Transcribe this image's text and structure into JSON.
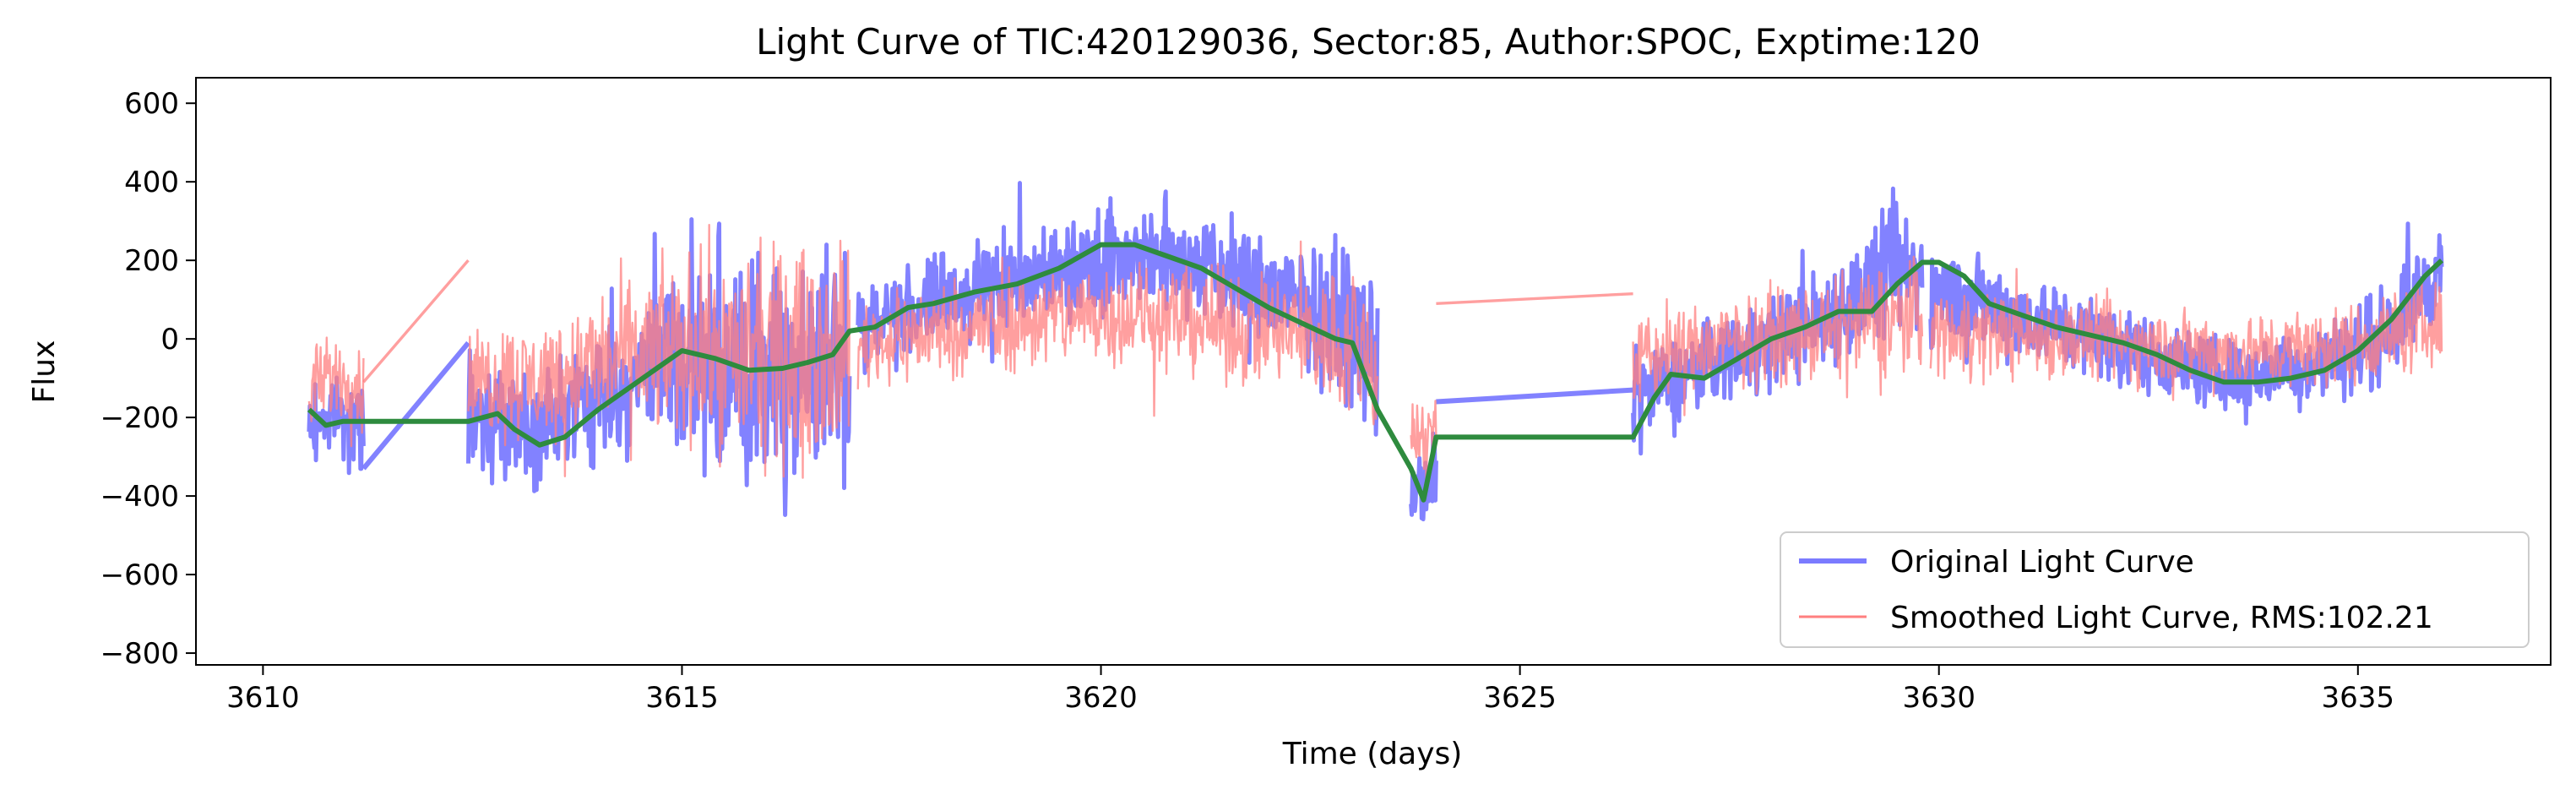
{
  "chart_data": {
    "type": "line",
    "title": "Light Curve of TIC:420129036, Sector:85, Author:SPOC, Exptime:120",
    "xlabel": "Time (days)",
    "ylabel": "Flux",
    "xlim": [
      3609.2,
      3637.3
    ],
    "ylim": [
      -830,
      665
    ],
    "xticks": [
      3610,
      3615,
      3620,
      3625,
      3630,
      3635
    ],
    "yticks": [
      -800,
      -600,
      -400,
      -200,
      0,
      200,
      400,
      600
    ],
    "grid": false,
    "legend_position": "lower-right",
    "colors": {
      "original": "#7b7bff",
      "smoothed": "#ff7f7f",
      "trend": "#2e8b3e"
    },
    "series": [
      {
        "name": "Original Light Curve",
        "style": "noisy-band",
        "segments": [
          {
            "x": [
              3610.55,
              3610.7,
              3610.85,
              3611.0,
              3611.2
            ],
            "center": [
              -230,
              -200,
              -180,
              -210,
              -240
            ],
            "amp": [
              160,
              150,
              140,
              150,
              170
            ]
          },
          {
            "x": [
              3612.45,
              3612.8,
              3613.2,
              3613.6,
              3614.0,
              3614.4,
              3614.8,
              3615.2,
              3615.6,
              3616.0,
              3616.4,
              3616.8,
              3617.0
            ],
            "center": [
              -190,
              -200,
              -220,
              -200,
              -150,
              -110,
              -60,
              -60,
              -80,
              -90,
              -80,
              -60,
              -40
            ],
            "amp": [
              200,
              210,
              220,
              230,
              250,
              280,
              320,
              360,
              400,
              430,
              440,
              430,
              400
            ]
          },
          {
            "x": [
              3617.1,
              3617.5,
              3618.0,
              3618.5,
              3619.0,
              3619.5,
              3620.0,
              3620.5,
              3621.0,
              3621.5,
              3622.0,
              3622.5,
              3623.0,
              3623.3
            ],
            "center": [
              30,
              60,
              90,
              120,
              150,
              180,
              210,
              220,
              200,
              160,
              120,
              80,
              20,
              -60
            ],
            "amp": [
              170,
              170,
              180,
              180,
              190,
              190,
              200,
              200,
              200,
              200,
              210,
              230,
              280,
              300
            ]
          },
          {
            "x": [
              3623.7,
              3623.85,
              3624.0
            ],
            "center": [
              -350,
              -420,
              -330
            ],
            "amp": [
              180,
              170,
              150
            ]
          },
          {
            "x": [
              3626.35,
              3626.7,
              3627.2,
              3627.8,
              3628.4,
              3629.0,
              3629.5,
              3629.8
            ],
            "center": [
              -150,
              -120,
              -60,
              -10,
              30,
              100,
              180,
              170
            ],
            "amp": [
              170,
              160,
              160,
              170,
              190,
              220,
              240,
              230
            ]
          },
          {
            "x": [
              3629.9,
              3630.4,
              3631.0,
              3631.6,
              3632.2,
              3632.8,
              3633.4,
              3634.0,
              3634.6,
              3635.2,
              3635.7,
              3636.0
            ],
            "center": [
              130,
              100,
              60,
              20,
              -20,
              -60,
              -90,
              -80,
              -60,
              -10,
              110,
              170
            ],
            "amp": [
              190,
              180,
              170,
              160,
              150,
              140,
              140,
              140,
              150,
              170,
              180,
              170
            ]
          }
        ],
        "connectors": [
          [
            3611.2,
            -330,
            3612.45,
            -10
          ],
          [
            3624.0,
            -160,
            3626.35,
            -130
          ]
        ]
      },
      {
        "name": "Smoothed Light Curve, RMS:102.21",
        "style": "noisy-band",
        "segments": [
          {
            "x": [
              3610.55,
              3610.7,
              3610.85,
              3611.0,
              3611.2
            ],
            "center": [
              -140,
              -110,
              -90,
              -110,
              -130
            ],
            "amp": [
              170,
              160,
              150,
              150,
              160
            ]
          },
          {
            "x": [
              3612.45,
              3612.8,
              3613.2,
              3613.6,
              3614.0,
              3614.4,
              3614.8,
              3615.2,
              3615.6,
              3616.0,
              3616.4,
              3616.8,
              3617.0
            ],
            "center": [
              -110,
              -100,
              -110,
              -90,
              -60,
              -40,
              -30,
              -20,
              -40,
              -50,
              -40,
              -20,
              -10
            ],
            "amp": [
              210,
              220,
              230,
              240,
              260,
              290,
              320,
              360,
              380,
              400,
              410,
              400,
              380
            ]
          },
          {
            "x": [
              3617.1,
              3617.5,
              3618.0,
              3618.5,
              3619.0,
              3619.5,
              3620.0,
              3620.5,
              3621.0,
              3621.5,
              3622.0,
              3622.5,
              3623.0,
              3623.3
            ],
            "center": [
              -20,
              0,
              20,
              30,
              40,
              60,
              70,
              60,
              50,
              30,
              20,
              10,
              -20,
              -60
            ],
            "amp": [
              170,
              170,
              180,
              180,
              190,
              190,
              200,
              200,
              200,
              210,
              220,
              240,
              290,
              320
            ]
          },
          {
            "x": [
              3623.7,
              3623.85,
              3624.0
            ],
            "center": [
              -230,
              -260,
              -210
            ],
            "amp": [
              180,
              170,
              160
            ]
          },
          {
            "x": [
              3626.35,
              3626.7,
              3627.2,
              3627.8,
              3628.4,
              3629.0,
              3629.5,
              3629.8
            ],
            "center": [
              -60,
              -40,
              -20,
              0,
              10,
              30,
              60,
              60
            ],
            "amp": [
              180,
              170,
              170,
              170,
              180,
              200,
              220,
              220
            ]
          },
          {
            "x": [
              3629.9,
              3630.4,
              3631.0,
              3631.6,
              3632.2,
              3632.8,
              3633.4,
              3634.0,
              3634.6,
              3635.2,
              3635.7,
              3636.0
            ],
            "center": [
              20,
              20,
              10,
              0,
              -10,
              -20,
              -30,
              -30,
              -20,
              0,
              30,
              40
            ],
            "amp": [
              170,
              170,
              160,
              160,
              150,
              150,
              150,
              150,
              150,
              160,
              170,
              170
            ]
          }
        ],
        "connectors": [
          [
            3611.2,
            -110,
            3612.45,
            200
          ],
          [
            3624.0,
            90,
            3626.35,
            115
          ]
        ]
      },
      {
        "name": "",
        "style": "trend-line",
        "x": [
          3610.55,
          3610.75,
          3610.95,
          3611.2,
          3612.45,
          3612.8,
          3613.0,
          3613.3,
          3613.6,
          3614.0,
          3614.4,
          3614.8,
          3615.0,
          3615.4,
          3615.8,
          3616.2,
          3616.5,
          3616.8,
          3617.0,
          3617.3,
          3617.7,
          3618.0,
          3618.5,
          3619.0,
          3619.5,
          3620.0,
          3620.4,
          3620.8,
          3621.2,
          3621.6,
          3622.0,
          3622.4,
          3622.8,
          3623.0,
          3623.3,
          3623.7,
          3623.85,
          3624.0,
          3626.35,
          3626.6,
          3626.8,
          3627.2,
          3627.6,
          3628.0,
          3628.4,
          3628.8,
          3629.2,
          3629.5,
          3629.8,
          3630.0,
          3630.3,
          3630.6,
          3631.0,
          3631.4,
          3631.8,
          3632.2,
          3632.6,
          3633.0,
          3633.4,
          3633.8,
          3634.2,
          3634.6,
          3635.0,
          3635.4,
          3635.8,
          3636.0
        ],
        "y": [
          -180,
          -220,
          -210,
          -210,
          -210,
          -190,
          -230,
          -270,
          -250,
          -180,
          -120,
          -60,
          -30,
          -50,
          -80,
          -75,
          -60,
          -40,
          20,
          30,
          80,
          90,
          120,
          140,
          180,
          240,
          240,
          210,
          180,
          130,
          80,
          40,
          0,
          -10,
          -180,
          -330,
          -410,
          -250,
          -250,
          -150,
          -90,
          -100,
          -50,
          0,
          30,
          70,
          70,
          140,
          195,
          195,
          160,
          90,
          60,
          30,
          10,
          -10,
          -40,
          -80,
          -110,
          -110,
          -100,
          -80,
          -30,
          50,
          160,
          200
        ]
      }
    ]
  }
}
